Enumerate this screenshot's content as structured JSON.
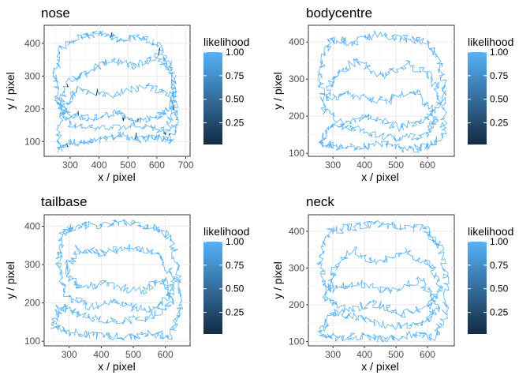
{
  "chart_data": [
    {
      "type": "line",
      "title": "nose",
      "xlabel": "x / pixel",
      "ylabel": "y / pixel",
      "xlim": [
        210,
        715
      ],
      "ylim": [
        55,
        455
      ],
      "xticks": [
        300,
        400,
        500,
        600,
        700
      ],
      "yticks": [
        100,
        200,
        300,
        400
      ],
      "grid": true,
      "legend": {
        "title": "likelihood",
        "ticks": [
          "1.00",
          "0.75",
          "0.50",
          "0.25"
        ],
        "position": "right"
      },
      "series": [
        {
          "color": "#56B1F7",
          "values_note": "",
          "x": [
            255,
            300,
            360,
            420,
            480,
            540,
            600,
            650,
            670,
            660,
            640,
            600,
            540,
            470,
            400,
            330,
            270,
            250,
            260,
            300,
            380,
            460,
            520,
            600,
            650,
            660,
            600,
            520,
            440,
            360,
            290,
            260,
            300,
            420,
            560,
            640,
            655,
            560,
            430,
            320,
            270
          ],
          "y": [
            70,
            100,
            95,
            110,
            120,
            105,
            115,
            100,
            180,
            260,
            340,
            400,
            420,
            410,
            430,
            420,
            390,
            300,
            220,
            180,
            170,
            190,
            160,
            175,
            200,
            300,
            360,
            330,
            350,
            310,
            280,
            200,
            150,
            140,
            150,
            130,
            240,
            270,
            240,
            260,
            180
          ]
        }
      ]
    },
    {
      "type": "line",
      "title": "bodycentre",
      "xlabel": "x / pixel",
      "ylabel": "y / pixel",
      "xlim": [
        222,
        685
      ],
      "ylim": [
        92,
        445
      ],
      "xticks": [
        300,
        400,
        500,
        600
      ],
      "yticks": [
        100,
        200,
        300,
        400
      ],
      "grid": true,
      "legend": {
        "title": "likelihood",
        "ticks": [
          "1.00",
          "0.75",
          "0.50",
          "0.25"
        ],
        "position": "right"
      },
      "series": [
        {
          "color": "#56B1F7",
          "x": [
            260,
            300,
            380,
            460,
            540,
            610,
            650,
            655,
            640,
            600,
            520,
            440,
            360,
            290,
            260,
            270,
            330,
            420,
            510,
            590,
            640,
            620,
            540,
            450,
            370,
            300,
            280,
            350,
            460,
            570,
            630,
            600,
            500,
            390,
            300
          ],
          "y": [
            130,
            120,
            115,
            125,
            110,
            120,
            150,
            250,
            350,
            400,
            410,
            420,
            400,
            410,
            320,
            220,
            180,
            200,
            170,
            190,
            230,
            300,
            340,
            310,
            350,
            300,
            250,
            260,
            240,
            270,
            200,
            150,
            140,
            160,
            180
          ]
        }
      ]
    },
    {
      "type": "line",
      "title": "tailbase",
      "xlabel": "x / pixel",
      "ylabel": "y / pixel",
      "xlim": [
        222,
        677
      ],
      "ylim": [
        88,
        430
      ],
      "xticks": [
        300,
        400,
        500,
        600
      ],
      "yticks": [
        100,
        200,
        300,
        400
      ],
      "grid": true,
      "legend": {
        "title": "likelihood",
        "ticks": [
          "1.00",
          "0.75",
          "0.50",
          "0.25"
        ],
        "position": "right"
      },
      "series": [
        {
          "color": "#56B1F7",
          "x": [
            250,
            300,
            380,
            470,
            550,
            620,
            645,
            640,
            620,
            560,
            480,
            400,
            320,
            280,
            265,
            290,
            360,
            450,
            540,
            610,
            630,
            580,
            500,
            410,
            330,
            290,
            320,
            420,
            520,
            600,
            620,
            540,
            430,
            330,
            270
          ],
          "y": [
            140,
            125,
            115,
            110,
            120,
            115,
            180,
            280,
            370,
            400,
            410,
            405,
            400,
            380,
            300,
            220,
            190,
            200,
            180,
            210,
            260,
            320,
            350,
            330,
            340,
            290,
            240,
            250,
            230,
            260,
            200,
            160,
            150,
            170,
            190
          ]
        }
      ]
    },
    {
      "type": "line",
      "title": "neck",
      "xlabel": "x / pixel",
      "ylabel": "y / pixel",
      "xlim": [
        222,
        685
      ],
      "ylim": [
        88,
        445
      ],
      "xticks": [
        300,
        400,
        500,
        600
      ],
      "yticks": [
        100,
        200,
        300,
        400
      ],
      "grid": true,
      "legend": {
        "title": "likelihood",
        "ticks": [
          "1.00",
          "0.75",
          "0.50",
          "0.25"
        ],
        "position": "right"
      },
      "series": [
        {
          "color": "#56B1F7",
          "x": [
            260,
            310,
            390,
            470,
            550,
            615,
            655,
            660,
            640,
            590,
            510,
            430,
            350,
            285,
            260,
            275,
            340,
            430,
            520,
            600,
            640,
            610,
            530,
            440,
            360,
            300,
            290,
            370,
            480,
            580,
            630,
            590,
            490,
            380,
            300
          ],
          "y": [
            120,
            110,
            115,
            105,
            120,
            110,
            160,
            260,
            360,
            405,
            415,
            420,
            410,
            400,
            310,
            220,
            185,
            205,
            175,
            195,
            240,
            310,
            345,
            315,
            350,
            290,
            240,
            260,
            235,
            270,
            195,
            150,
            140,
            165,
            180
          ]
        }
      ]
    }
  ]
}
